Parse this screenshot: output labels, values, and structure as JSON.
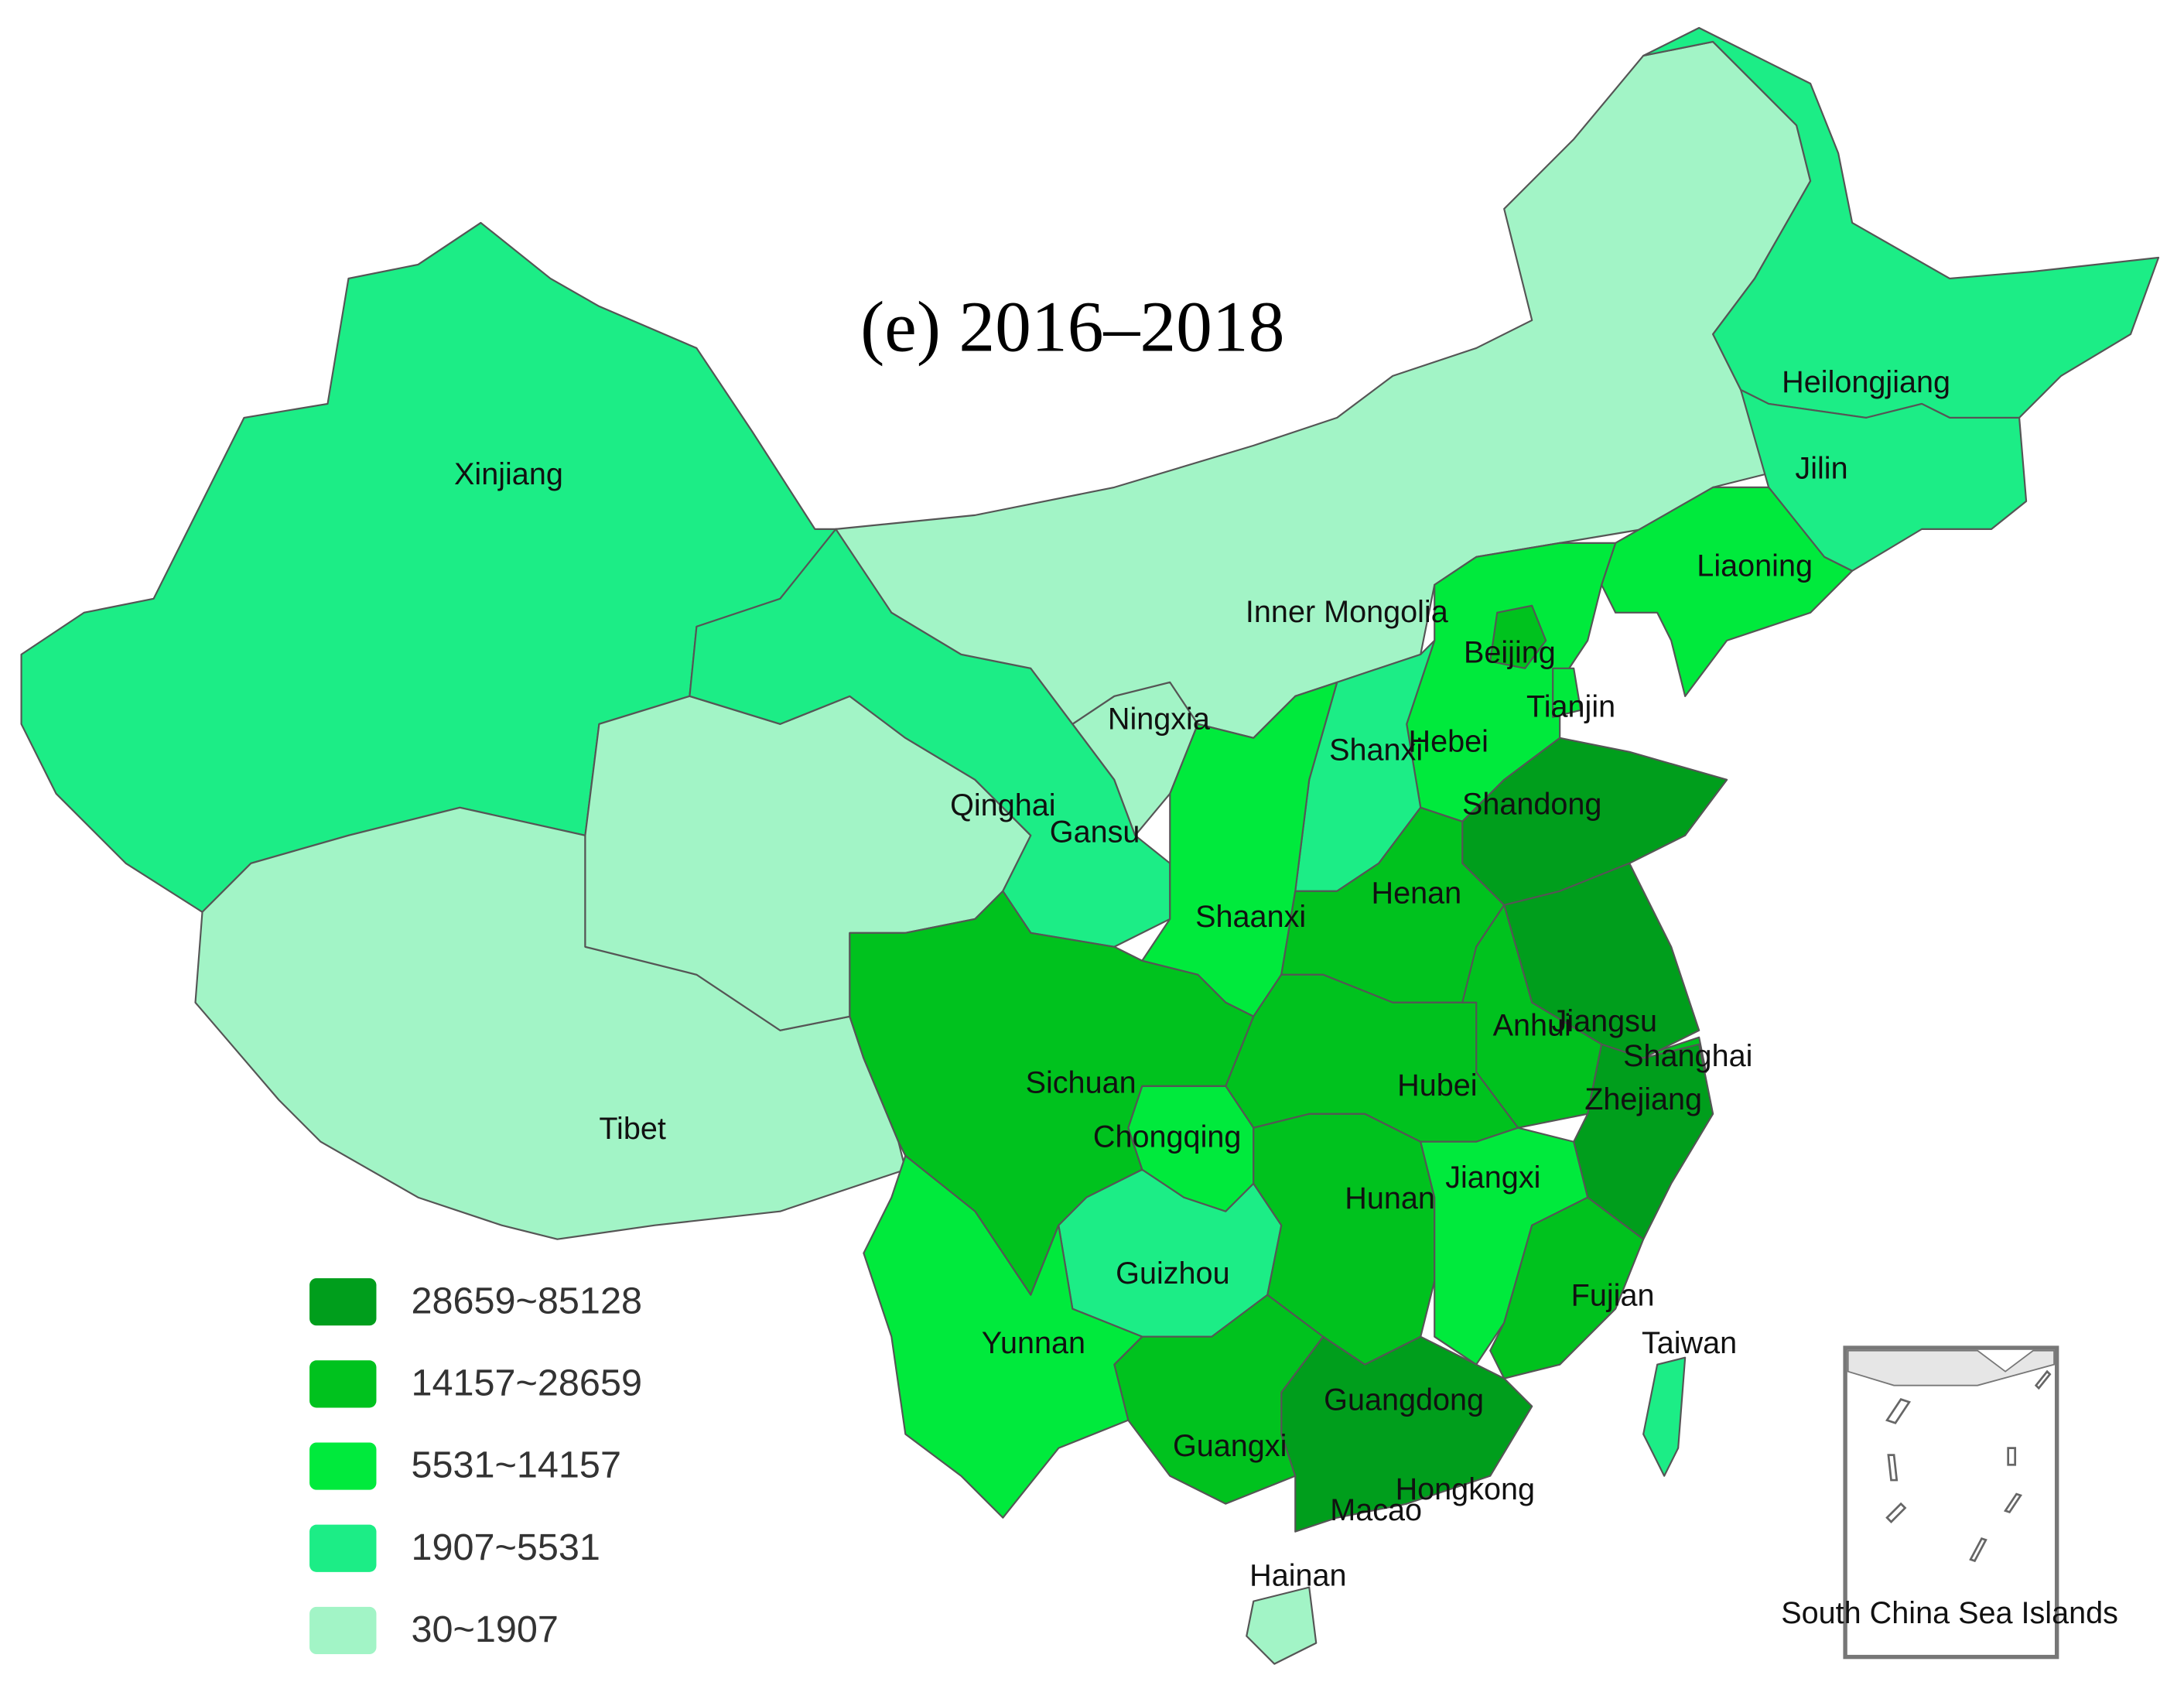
{
  "title": "(e) 2016–2018",
  "legend": [
    {
      "label": "28659~85128",
      "color": "#009e1c"
    },
    {
      "label": "14157~28659",
      "color": "#00c21e"
    },
    {
      "label": "5531~14157",
      "color": "#00ea3c"
    },
    {
      "label": "1907~5531",
      "color": "#1ced86"
    },
    {
      "label": "30~1907",
      "color": "#a2f4c6"
    }
  ],
  "regions": [
    {
      "name": "Xinjiang",
      "color": "#1ced86"
    },
    {
      "name": "Tibet",
      "color": "#a2f4c6"
    },
    {
      "name": "Qinghai",
      "color": "#a2f4c6"
    },
    {
      "name": "Gansu",
      "color": "#1ced86"
    },
    {
      "name": "Ningxia",
      "color": "#a2f4c6"
    },
    {
      "name": "Inner Mongolia",
      "color": "#a2f4c6"
    },
    {
      "name": "Heilongjiang",
      "color": "#1ced86"
    },
    {
      "name": "Jilin",
      "color": "#1ced86"
    },
    {
      "name": "Liaoning",
      "color": "#00ea3c"
    },
    {
      "name": "Hebei",
      "color": "#00ea3c"
    },
    {
      "name": "Beijing",
      "color": "#00c21e"
    },
    {
      "name": "Tianjin",
      "color": "#00ea3c"
    },
    {
      "name": "Shanxi",
      "color": "#1ced86"
    },
    {
      "name": "Shaanxi",
      "color": "#00ea3c"
    },
    {
      "name": "Shandong",
      "color": "#009e1c"
    },
    {
      "name": "Henan",
      "color": "#00c21e"
    },
    {
      "name": "Jiangsu",
      "color": "#009e1c"
    },
    {
      "name": "Anhui",
      "color": "#00c21e"
    },
    {
      "name": "Shanghai",
      "color": "#00c21e"
    },
    {
      "name": "Zhejiang",
      "color": "#009e1c"
    },
    {
      "name": "Hubei",
      "color": "#00c21e"
    },
    {
      "name": "Chongqing",
      "color": "#00ea3c"
    },
    {
      "name": "Sichuan",
      "color": "#00c21e"
    },
    {
      "name": "Guizhou",
      "color": "#1ced86"
    },
    {
      "name": "Hunan",
      "color": "#00c21e"
    },
    {
      "name": "Jiangxi",
      "color": "#00ea3c"
    },
    {
      "name": "Fujian",
      "color": "#00c21e"
    },
    {
      "name": "Guangdong",
      "color": "#009e1c"
    },
    {
      "name": "Guangxi",
      "color": "#00c21e"
    },
    {
      "name": "Yunnan",
      "color": "#00ea3c"
    },
    {
      "name": "Hainan",
      "color": "#a2f4c6"
    },
    {
      "name": "Taiwan",
      "color": "#1ced86"
    },
    {
      "name": "Hongkong"
    },
    {
      "name": "Macao"
    }
  ],
  "inset_label": "South China Sea Islands"
}
